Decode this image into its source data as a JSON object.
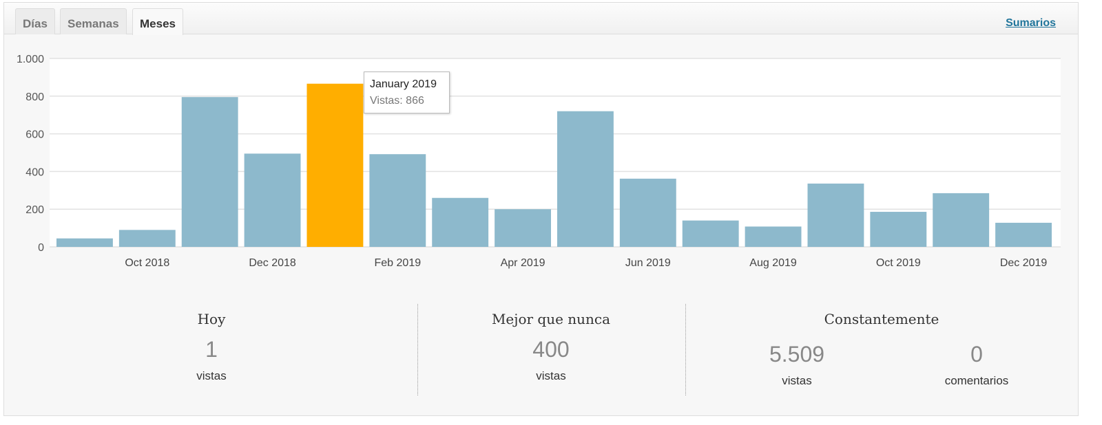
{
  "tabs": [
    {
      "label": "Días"
    },
    {
      "label": "Semanas"
    },
    {
      "label": "Meses"
    }
  ],
  "active_tab": "Meses",
  "summaries_link": "Sumarios",
  "tooltip": {
    "title": "January 2019",
    "text": "Vistas: 866"
  },
  "colors": {
    "bar": "#8db9cc",
    "highlight": "#ffae00"
  },
  "chart_data": {
    "type": "bar",
    "categories": [
      "Sep 2018",
      "Oct 2018",
      "Nov 2018",
      "Dec 2018",
      "Jan 2019",
      "Feb 2019",
      "Mar 2019",
      "Apr 2019",
      "May 2019",
      "Jun 2019",
      "Jul 2019",
      "Aug 2019",
      "Sep 2019",
      "Oct 2019",
      "Nov 2019",
      "Dec 2019"
    ],
    "values": [
      45,
      90,
      795,
      495,
      866,
      492,
      260,
      200,
      720,
      362,
      140,
      108,
      336,
      186,
      285,
      128
    ],
    "highlighted": "Jan 2019",
    "x_tick_labels": [
      "Oct 2018",
      "Dec 2018",
      "Feb 2019",
      "Apr 2019",
      "Jun 2019",
      "Aug 2019",
      "Oct 2019",
      "Dec 2019"
    ],
    "y_tick_labels": [
      "0",
      "200",
      "400",
      "600",
      "800",
      "1.000"
    ],
    "y_ticks": [
      0,
      200,
      400,
      600,
      800,
      1000
    ],
    "ylim": [
      0,
      1000
    ],
    "ylabel": "Vistas",
    "grid": true
  },
  "stats": {
    "today": {
      "heading": "Hoy",
      "value": "1",
      "label": "vistas"
    },
    "best": {
      "heading": "Mejor que nunca",
      "value": "400",
      "label": "vistas"
    },
    "alltime": {
      "heading": "Constantemente",
      "views": "5.509",
      "views_label": "vistas",
      "comments": "0",
      "comments_label": "comentarios"
    }
  }
}
